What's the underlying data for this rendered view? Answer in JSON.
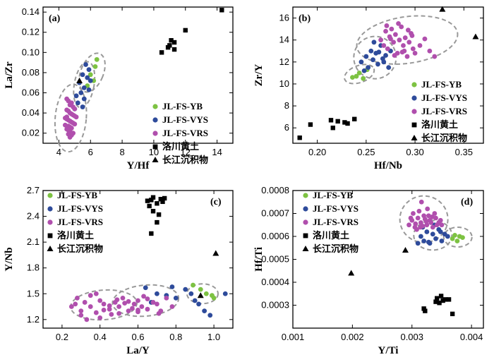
{
  "colors": {
    "JL-FS-YB": "#7dc242",
    "JL-FS-VYS": "#2e4b9b",
    "JL-FS-VRS": "#b04fad",
    "luochuan": "#000000",
    "changjiang": "#e03a2a"
  },
  "legend_labels": [
    "JL-FS-YB",
    "JL-FS-VYS",
    "JL-FS-VRS",
    "洛川黄土",
    "长江沉积物"
  ],
  "chart_data": [
    {
      "panel": "(a)",
      "type": "scatter",
      "xlabel": "Y/Hf",
      "ylabel": "La/Zr",
      "xlim": [
        3,
        15
      ],
      "ylim": [
        0.01,
        0.145
      ],
      "xticks": [
        "4",
        "6",
        "8",
        "10",
        "12",
        "14"
      ],
      "yticks": [
        "0.02",
        "0.04",
        "0.06",
        "0.08",
        "0.10",
        "0.12",
        "0.14"
      ],
      "series": [
        {
          "name": "JL-FS-YB",
          "x": [
            6.4,
            6.3,
            6.0,
            6.2,
            5.8
          ],
          "y": [
            0.093,
            0.086,
            0.078,
            0.072,
            0.067
          ]
        },
        {
          "name": "JL-FS-VYS",
          "x": [
            5.7,
            5.9,
            5.5,
            5.8,
            6.0,
            5.3,
            5.6,
            5.4,
            5.1,
            5.6,
            5.9,
            5.2,
            5.5,
            5.0
          ],
          "y": [
            0.088,
            0.083,
            0.078,
            0.075,
            0.072,
            0.07,
            0.065,
            0.06,
            0.057,
            0.054,
            0.063,
            0.05,
            0.046,
            0.044
          ]
        },
        {
          "name": "JL-FS-VRS",
          "x": [
            4.5,
            4.6,
            4.8,
            4.7,
            4.9,
            5.0,
            4.5,
            4.6,
            4.7,
            4.8,
            4.9,
            5.0,
            5.1,
            4.4,
            4.5,
            4.6,
            4.7,
            4.8,
            4.9,
            5.0,
            4.4,
            4.6,
            4.7,
            4.8,
            4.5,
            4.6,
            4.7,
            4.9,
            4.6,
            4.8,
            4.7,
            4.5
          ],
          "y": [
            0.054,
            0.052,
            0.05,
            0.048,
            0.046,
            0.044,
            0.043,
            0.042,
            0.04,
            0.039,
            0.038,
            0.037,
            0.036,
            0.035,
            0.034,
            0.033,
            0.032,
            0.031,
            0.03,
            0.029,
            0.028,
            0.027,
            0.026,
            0.025,
            0.024,
            0.023,
            0.022,
            0.02,
            0.019,
            0.018,
            0.016,
            0.036
          ]
        },
        {
          "name": "洛川黄土",
          "x": [
            14.3,
            12.0,
            11.1,
            11.0,
            11.3,
            10.5,
            10.9,
            11.3
          ],
          "y": [
            0.142,
            0.122,
            0.112,
            0.107,
            0.103,
            0.1,
            0.105,
            0.11
          ]
        },
        {
          "name": "长江沉积物",
          "x": [
            5.3
          ],
          "y": [
            0.072
          ]
        }
      ]
    },
    {
      "panel": "(b)",
      "type": "scatter",
      "xlabel": "Hf/Nb",
      "ylabel": "Zr/Y",
      "xlim": [
        0.175,
        0.37
      ],
      "ylim": [
        4.6,
        17
      ],
      "xticks": [
        "0.20",
        "0.25",
        "0.30",
        "0.35"
      ],
      "yticks": [
        "6",
        "8",
        "10",
        "12",
        "14",
        "16"
      ],
      "series": [
        {
          "name": "JL-FS-YB",
          "x": [
            0.236,
            0.24,
            0.243,
            0.247,
            0.251
          ],
          "y": [
            10.6,
            10.7,
            11.0,
            10.5,
            11.3
          ]
        },
        {
          "name": "JL-FS-VYS",
          "x": [
            0.245,
            0.25,
            0.252,
            0.255,
            0.257,
            0.26,
            0.262,
            0.265,
            0.268,
            0.27,
            0.273,
            0.275,
            0.258,
            0.263,
            0.248,
            0.267
          ],
          "y": [
            12.0,
            12.5,
            11.5,
            13.0,
            12.2,
            12.8,
            11.8,
            13.5,
            12.0,
            12.6,
            11.5,
            13.0,
            13.8,
            12.9,
            11.2,
            12.3
          ]
        },
        {
          "name": "JL-FS-VRS",
          "x": [
            0.265,
            0.268,
            0.27,
            0.272,
            0.274,
            0.276,
            0.278,
            0.28,
            0.282,
            0.284,
            0.286,
            0.288,
            0.29,
            0.292,
            0.294,
            0.296,
            0.298,
            0.3,
            0.305,
            0.31,
            0.315,
            0.32,
            0.283,
            0.275,
            0.287,
            0.293,
            0.271,
            0.279,
            0.289,
            0.297
          ],
          "y": [
            14.0,
            13.5,
            14.8,
            13.2,
            14.3,
            15.0,
            13.8,
            14.5,
            12.8,
            14.0,
            15.2,
            13.5,
            14.2,
            12.5,
            13.8,
            14.6,
            13.2,
            12.8,
            13.5,
            14.1,
            13.0,
            12.5,
            15.5,
            14.1,
            12.9,
            14.9,
            15.3,
            12.6,
            13.0,
            14.4
          ]
        },
        {
          "name": "洛川黄土",
          "x": [
            0.182,
            0.193,
            0.214,
            0.216,
            0.221,
            0.228,
            0.231,
            0.238
          ],
          "y": [
            5.1,
            6.3,
            6.7,
            6.0,
            6.6,
            6.5,
            6.4,
            6.8
          ]
        },
        {
          "name": "长江沉积物",
          "x": [
            0.328,
            0.362
          ],
          "y": [
            16.8,
            14.3
          ]
        }
      ]
    },
    {
      "panel": "(c)",
      "type": "scatter",
      "xlabel": "La/Y",
      "ylabel": "Y/Nb",
      "xlim": [
        0.1,
        1.1
      ],
      "ylim": [
        1.1,
        2.7
      ],
      "xticks": [
        "0.2",
        "0.4",
        "0.6",
        "0.8",
        "1.0"
      ],
      "yticks": [
        "1.2",
        "1.5",
        "1.8",
        "2.1",
        "2.4",
        "2.7"
      ],
      "series": [
        {
          "name": "JL-FS-YB",
          "x": [
            0.89,
            0.93,
            0.96,
            0.99,
            1.0
          ],
          "y": [
            1.6,
            1.55,
            1.5,
            1.48,
            1.45
          ]
        },
        {
          "name": "JL-FS-VYS",
          "x": [
            0.64,
            0.7,
            0.75,
            0.8,
            0.85,
            0.88,
            0.9,
            0.92,
            0.95,
            0.98,
            1.06,
            0.78,
            0.67
          ],
          "y": [
            1.57,
            1.5,
            1.48,
            1.45,
            1.55,
            1.5,
            1.42,
            1.38,
            1.3,
            1.25,
            1.5,
            1.58,
            1.4
          ]
        },
        {
          "name": "JL-FS-VRS",
          "x": [
            0.25,
            0.28,
            0.3,
            0.32,
            0.35,
            0.38,
            0.4,
            0.42,
            0.45,
            0.48,
            0.5,
            0.52,
            0.55,
            0.58,
            0.6,
            0.62,
            0.65,
            0.68,
            0.7,
            0.72,
            0.75,
            0.78,
            0.3,
            0.35,
            0.4,
            0.45,
            0.5,
            0.55,
            0.6,
            0.65,
            0.38,
            0.46,
            0.53,
            0.57,
            0.63,
            0.42,
            0.33,
            0.27,
            0.49,
            0.6,
            0.71
          ],
          "y": [
            1.35,
            1.45,
            1.3,
            1.4,
            1.35,
            1.28,
            1.42,
            1.38,
            1.32,
            1.4,
            1.35,
            1.45,
            1.3,
            1.38,
            1.42,
            1.35,
            1.32,
            1.4,
            1.38,
            1.3,
            1.45,
            1.35,
            1.25,
            1.48,
            1.22,
            1.36,
            1.27,
            1.41,
            1.29,
            1.44,
            1.5,
            1.26,
            1.39,
            1.33,
            1.47,
            1.31,
            1.2,
            1.38,
            1.43,
            1.31,
            1.27
          ]
        },
        {
          "name": "洛川黄土",
          "x": [
            0.65,
            0.66,
            0.67,
            0.68,
            0.7,
            0.71,
            0.72,
            0.73,
            0.74,
            0.68,
            0.67,
            0.7
          ],
          "y": [
            2.58,
            2.52,
            2.59,
            2.62,
            2.55,
            2.42,
            2.6,
            2.57,
            2.61,
            2.46,
            2.2,
            2.33
          ]
        },
        {
          "name": "长江沉积物",
          "x": [
            1.01,
            0.93
          ],
          "y": [
            1.97,
            1.48
          ]
        }
      ]
    },
    {
      "panel": "(d)",
      "type": "scatter",
      "xlabel": "Y/Ti",
      "ylabel": "Hf/Ti",
      "xlim": [
        0.001,
        0.0042
      ],
      "ylim": [
        0.0002,
        0.0008
      ],
      "xticks": [
        "0.001",
        "0.002",
        "0.003",
        "0.004"
      ],
      "yticks": [
        "0.0003",
        "0.0004",
        "0.0005",
        "0.0006",
        "0.0007",
        "0.0008"
      ],
      "series": [
        {
          "name": "JL-FS-YB",
          "x": [
            0.00368,
            0.00372,
            0.00376,
            0.0038,
            0.00385
          ],
          "y": [
            0.00059,
            0.000605,
            0.00058,
            0.0006,
            0.000595
          ]
        },
        {
          "name": "JL-FS-VYS",
          "x": [
            0.0031,
            0.00315,
            0.0032,
            0.00325,
            0.0033,
            0.00335,
            0.0034,
            0.00345,
            0.0035,
            0.00355,
            0.0036,
            0.00318,
            0.00328,
            0.00338,
            0.00348
          ],
          "y": [
            0.00057,
            0.0006,
            0.00058,
            0.00062,
            0.00057,
            0.00061,
            0.00059,
            0.00063,
            0.00058,
            0.00061,
            0.0006,
            0.00064,
            0.000575,
            0.00065,
            0.00062
          ]
        },
        {
          "name": "JL-FS-VRS",
          "x": [
            0.00295,
            0.003,
            0.00305,
            0.0031,
            0.00315,
            0.0032,
            0.00325,
            0.0033,
            0.00335,
            0.0034,
            0.00345,
            0.0035,
            0.00302,
            0.00308,
            0.00312,
            0.00318,
            0.00322,
            0.00328,
            0.00332,
            0.00338,
            0.00342,
            0.00348,
            0.00298,
            0.00306,
            0.00314,
            0.00324,
            0.00334,
            0.00316,
            0.00326
          ],
          "y": [
            0.00065,
            0.00067,
            0.00064,
            0.00068,
            0.00066,
            0.00069,
            0.00065,
            0.00067,
            0.00064,
            0.00068,
            0.00066,
            0.00065,
            0.0007,
            0.00063,
            0.00071,
            0.000645,
            0.000675,
            0.00069,
            0.00066,
            0.0007,
            0.00065,
            0.00067,
            0.00068,
            0.000655,
            0.00064,
            0.000665,
            0.000685,
            0.00075,
            0.00072
          ]
        },
        {
          "name": "洛川黄土",
          "x": [
            0.0032,
            0.00322,
            0.0034,
            0.00342,
            0.00346,
            0.00349,
            0.00352,
            0.00356,
            0.00362,
            0.00368
          ],
          "y": [
            0.000285,
            0.000275,
            0.000315,
            0.00033,
            0.00031,
            0.00034,
            0.00032,
            0.000325,
            0.000325,
            0.000262
          ]
        },
        {
          "name": "长江沉积物",
          "x": [
            0.00198,
            0.00289
          ],
          "y": [
            0.00044,
            0.00054
          ]
        }
      ]
    }
  ]
}
